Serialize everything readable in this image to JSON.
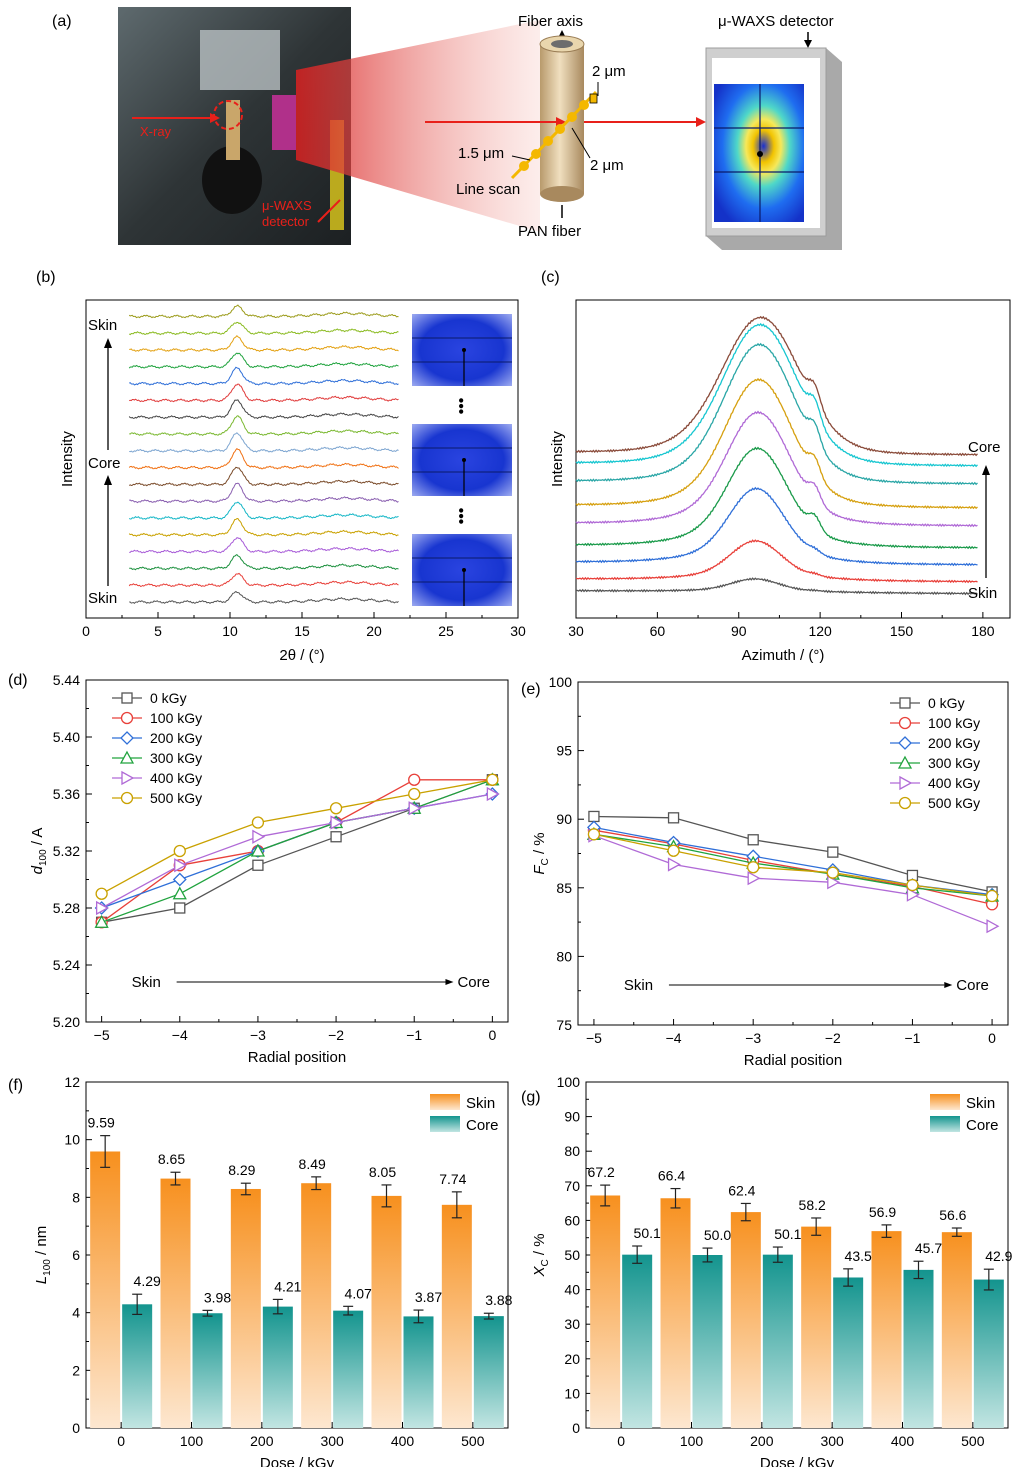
{
  "panel_labels": {
    "a": "(a)",
    "b": "(b)",
    "c": "(c)",
    "d": "(d)",
    "e": "(e)",
    "f": "(f)",
    "g": "(g)"
  },
  "schematic": {
    "xray_label": "X-ray",
    "detector_label_line1": "μ-WAXS",
    "detector_label_line2": "detector",
    "fiber_axis": "Fiber axis",
    "dim_top": "2 μm",
    "dim_right": "2 μm",
    "dim_left": "1.5 μm",
    "line_scan": "Line scan",
    "pan_fiber": "PAN fiber",
    "detector_title": "μ-WAXS detector",
    "colors": {
      "beam": "#e8201a",
      "fiber": "#d9c29a",
      "scan": "#f4b800",
      "detector_frame": "#c8c8c8"
    }
  },
  "chart_data": [
    {
      "id": "b",
      "type": "line",
      "xlabel": "2θ / (°)",
      "ylabel": "Intensity",
      "xlim": [
        0,
        30
      ],
      "xticks": [
        0,
        5,
        10,
        15,
        20,
        25,
        30
      ],
      "annotations": {
        "top": "Skin",
        "middle": "Core",
        "bottom": "Skin"
      },
      "curves": {
        "count": 18,
        "x_range": [
          3,
          21.7
        ],
        "peak_x": 10.5,
        "secondary_peak_x": 18
      },
      "colors": [
        "#555555",
        "#e8403a",
        "#1a8f3c",
        "#a85cd8",
        "#c9a100",
        "#13b6c6",
        "#8a5fb0",
        "#7a4b2a",
        "#f07012",
        "#7ea6d1",
        "#7ab830",
        "#444444",
        "#e03a3a",
        "#2f6fd8",
        "#20a33e",
        "#e3a010",
        "#8bbb22",
        "#9c9c1c"
      ],
      "bars_text": "•••"
    },
    {
      "id": "c",
      "type": "line",
      "xlabel": "Azimuth / (°)",
      "ylabel": "Intensity",
      "xlim": [
        30,
        190
      ],
      "xticks": [
        30,
        60,
        90,
        120,
        150,
        180
      ],
      "annotations": {
        "top": "Core",
        "bottom": "Skin"
      },
      "curves": {
        "count": 9,
        "peak_x": 96,
        "shoulder_x": 118
      },
      "colors": [
        "#555555",
        "#e8403a",
        "#2f6fd8",
        "#1a9a4a",
        "#b06ad6",
        "#d6a010",
        "#2aa6a6",
        "#17c6d0",
        "#8a4b3a"
      ]
    },
    {
      "id": "d",
      "type": "line",
      "xlabel": "Radial position",
      "ylabel_main": "d",
      "ylabel_sub": "100",
      "ylabel_unit": " / A",
      "xlim": [
        -5.2,
        0.2
      ],
      "ylim": [
        5.2,
        5.44
      ],
      "xticks": [
        -5,
        -4,
        -3,
        -2,
        -1,
        0
      ],
      "xtick_labels": [
        "−5",
        "−4",
        "−3",
        "−2",
        "−1",
        "0"
      ],
      "yticks": [
        "5.20",
        "5.24",
        "5.28",
        "5.32",
        "5.36",
        "5.40",
        "5.44"
      ],
      "arrow_left": "Skin",
      "arrow_right": "Core",
      "x": [
        -5,
        -4,
        -3,
        -2,
        -1,
        0
      ],
      "series": [
        {
          "name": "0 kGy",
          "color": "#555555",
          "marker": "square",
          "values": [
            5.27,
            5.28,
            5.31,
            5.33,
            5.35,
            5.37
          ]
        },
        {
          "name": "100 kGy",
          "color": "#e8403a",
          "marker": "circle",
          "values": [
            5.27,
            5.31,
            5.32,
            5.34,
            5.37,
            5.37
          ]
        },
        {
          "name": "200 kGy",
          "color": "#2f6fd8",
          "marker": "diamond",
          "values": [
            5.28,
            5.3,
            5.32,
            5.34,
            5.35,
            5.36
          ]
        },
        {
          "name": "300 kGy",
          "color": "#20a33e",
          "marker": "triangle",
          "values": [
            5.27,
            5.29,
            5.32,
            5.34,
            5.35,
            5.37
          ]
        },
        {
          "name": "400 kGy",
          "color": "#b06ad6",
          "marker": "triangle-right",
          "values": [
            5.28,
            5.31,
            5.33,
            5.34,
            5.35,
            5.36
          ]
        },
        {
          "name": "500 kGy",
          "color": "#c9a100",
          "marker": "circle",
          "values": [
            5.29,
            5.32,
            5.34,
            5.35,
            5.36,
            5.37
          ]
        }
      ]
    },
    {
      "id": "e",
      "type": "line",
      "xlabel": "Radial position",
      "ylabel_main": "F",
      "ylabel_sub": "C",
      "ylabel_unit": " / %",
      "xlim": [
        -5.2,
        0.2
      ],
      "ylim": [
        75,
        100
      ],
      "xticks": [
        -5,
        -4,
        -3,
        -2,
        -1,
        0
      ],
      "xtick_labels": [
        "−5",
        "−4",
        "−3",
        "−2",
        "−1",
        "0"
      ],
      "yticks": [
        "75",
        "80",
        "85",
        "90",
        "95",
        "100"
      ],
      "arrow_left": "Skin",
      "arrow_right": "Core",
      "x": [
        -5,
        -4,
        -3,
        -2,
        -1,
        0
      ],
      "series": [
        {
          "name": "0 kGy",
          "color": "#555555",
          "marker": "square",
          "values": [
            90.2,
            90.1,
            88.5,
            87.6,
            85.9,
            84.7
          ]
        },
        {
          "name": "100 kGy",
          "color": "#e8403a",
          "marker": "circle",
          "values": [
            89.2,
            88.2,
            87.0,
            86.0,
            85.1,
            83.8
          ]
        },
        {
          "name": "200 kGy",
          "color": "#2f6fd8",
          "marker": "diamond",
          "values": [
            89.4,
            88.3,
            87.3,
            86.3,
            85.2,
            84.5
          ]
        },
        {
          "name": "300 kGy",
          "color": "#20a33e",
          "marker": "triangle",
          "values": [
            88.9,
            88.0,
            86.8,
            86.0,
            85.0,
            84.4
          ]
        },
        {
          "name": "400 kGy",
          "color": "#b06ad6",
          "marker": "triangle-right",
          "values": [
            88.8,
            86.7,
            85.7,
            85.4,
            84.5,
            82.2
          ]
        },
        {
          "name": "500 kGy",
          "color": "#c9a100",
          "marker": "circle",
          "values": [
            88.9,
            87.7,
            86.5,
            86.1,
            85.2,
            84.4
          ]
        }
      ]
    },
    {
      "id": "f",
      "type": "bar",
      "xlabel": "Dose / kGy",
      "ylabel_main": "L",
      "ylabel_sub": "100",
      "ylabel_unit": " / nm",
      "ylim": [
        0,
        12
      ],
      "yticks": [
        "0",
        "2",
        "4",
        "6",
        "8",
        "10",
        "12"
      ],
      "categories": [
        "0",
        "100",
        "200",
        "300",
        "400",
        "500"
      ],
      "series": [
        {
          "name": "Skin",
          "color": "#f7901e",
          "values": [
            9.59,
            8.65,
            8.29,
            8.49,
            8.05,
            7.74
          ],
          "labels": [
            "9.59",
            "8.65",
            "8.29",
            "8.49",
            "8.05",
            "7.74"
          ],
          "errors": [
            0.55,
            0.22,
            0.2,
            0.22,
            0.38,
            0.45
          ]
        },
        {
          "name": "Core",
          "color": "#1a9a94",
          "values": [
            4.29,
            3.98,
            4.21,
            4.07,
            3.87,
            3.88
          ],
          "labels": [
            "4.29",
            "3.98",
            "4.21",
            "4.07",
            "3.87",
            "3.88"
          ],
          "errors": [
            0.35,
            0.1,
            0.25,
            0.15,
            0.22,
            0.1
          ]
        }
      ]
    },
    {
      "id": "g",
      "type": "bar",
      "xlabel": "Dose / kGy",
      "ylabel_main": "X",
      "ylabel_sub": "C",
      "ylabel_unit": " / %",
      "ylim": [
        0,
        100
      ],
      "yticks": [
        "0",
        "10",
        "20",
        "30",
        "40",
        "50",
        "60",
        "70",
        "80",
        "90",
        "100"
      ],
      "categories": [
        "0",
        "100",
        "200",
        "300",
        "400",
        "500"
      ],
      "series": [
        {
          "name": "Skin",
          "color": "#f7901e",
          "values": [
            67.2,
            66.4,
            62.4,
            58.2,
            56.9,
            56.6
          ],
          "labels": [
            "67.2",
            "66.4",
            "62.4",
            "58.2",
            "56.9",
            "56.6"
          ],
          "errors": [
            3.0,
            2.8,
            2.5,
            2.5,
            1.8,
            1.2
          ]
        },
        {
          "name": "Core",
          "color": "#1a9a94",
          "values": [
            50.1,
            50.0,
            50.1,
            43.5,
            45.7,
            42.9
          ],
          "labels": [
            "50.1",
            "50.0",
            "50.1",
            "43.5",
            "45.7",
            "42.9"
          ],
          "errors": [
            2.5,
            2.0,
            2.2,
            2.5,
            2.5,
            3.0
          ]
        }
      ]
    }
  ]
}
